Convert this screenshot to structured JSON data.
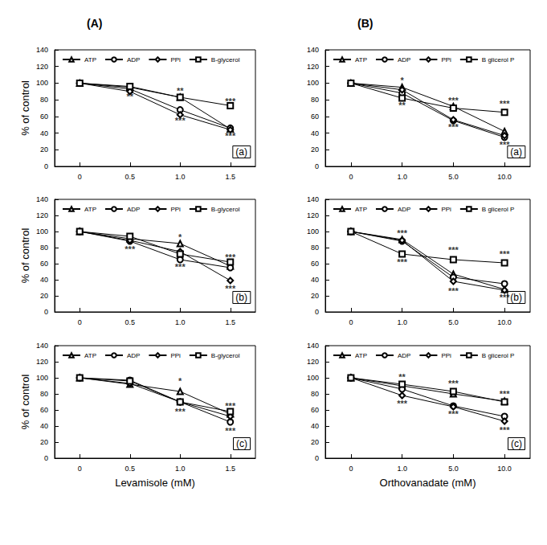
{
  "chart_data": [
    {
      "type": "line",
      "subtitle": "(A)",
      "title": "(a)",
      "ylabel": "% of control",
      "categories": [
        "0",
        "0.5",
        "1.0",
        "1.5"
      ],
      "ylim": [
        0,
        140
      ],
      "yticks": [
        0,
        20,
        40,
        60,
        80,
        100,
        120,
        140
      ],
      "grid": false,
      "legend": "top",
      "series": [
        {
          "name": "ATP",
          "color": "#000000",
          "marker": "triangle",
          "values": [
            100,
            95,
            83,
            45
          ]
        },
        {
          "name": "ADP",
          "color": "#000000",
          "marker": "circle",
          "values": [
            100,
            93,
            68,
            46
          ]
        },
        {
          "name": "PPi",
          "color": "#000000",
          "marker": "diamond",
          "values": [
            100,
            90,
            62,
            44
          ]
        },
        {
          "name": "B-glycerol",
          "color": "#000000",
          "marker": "rect",
          "values": [
            100,
            96,
            83,
            73
          ]
        }
      ],
      "annotations": [
        {
          "x": "0.5",
          "y": 84,
          "text": "**"
        },
        {
          "x": "1.0",
          "y": 91,
          "text": "**"
        },
        {
          "x": "1.0",
          "y": 55,
          "text": "***"
        },
        {
          "x": "1.5",
          "y": 78,
          "text": "***"
        },
        {
          "x": "1.5",
          "y": 37,
          "text": "***"
        }
      ]
    },
    {
      "type": "line",
      "subtitle": "(B)",
      "title": "(a)",
      "categories": [
        "0",
        "1.0",
        "5.0",
        "10.0"
      ],
      "ylim": [
        0,
        140
      ],
      "yticks": [
        0,
        20,
        40,
        60,
        80,
        100,
        120,
        140
      ],
      "grid": false,
      "legend": "top",
      "series": [
        {
          "name": "ATP",
          "color": "#000000",
          "marker": "triangle",
          "values": [
            100,
            95,
            72,
            42
          ]
        },
        {
          "name": "ADP",
          "color": "#000000",
          "marker": "circle",
          "values": [
            100,
            88,
            55,
            35
          ]
        },
        {
          "name": "PPi",
          "color": "#000000",
          "marker": "diamond",
          "values": [
            100,
            92,
            56,
            37
          ]
        },
        {
          "name": "B glicerol P",
          "color": "#000000",
          "marker": "rect",
          "values": [
            100,
            82,
            70,
            65
          ]
        }
      ],
      "annotations": [
        {
          "x": "1.0",
          "y": 103,
          "text": "*"
        },
        {
          "x": "1.0",
          "y": 73,
          "text": "**"
        },
        {
          "x": "5.0",
          "y": 79,
          "text": "***"
        },
        {
          "x": "5.0",
          "y": 47,
          "text": "***"
        },
        {
          "x": "10.0",
          "y": 75,
          "text": "***"
        },
        {
          "x": "10.0",
          "y": 26,
          "text": "***"
        }
      ]
    },
    {
      "type": "line",
      "title": "(b)",
      "ylabel": "% of control",
      "categories": [
        "0",
        "0.5",
        "1.0",
        "1.5"
      ],
      "ylim": [
        0,
        140
      ],
      "yticks": [
        0,
        20,
        40,
        60,
        80,
        100,
        120,
        140
      ],
      "grid": false,
      "legend": "top",
      "series": [
        {
          "name": "ATP",
          "color": "#000000",
          "marker": "triangle",
          "values": [
            100,
            91,
            85,
            57
          ]
        },
        {
          "name": "ADP",
          "color": "#000000",
          "marker": "circle",
          "values": [
            100,
            88,
            65,
            55
          ]
        },
        {
          "name": "PPi",
          "color": "#000000",
          "marker": "diamond",
          "values": [
            100,
            89,
            75,
            39
          ]
        },
        {
          "name": "B-glycerol",
          "color": "#000000",
          "marker": "rect",
          "values": [
            100,
            94,
            72,
            62
          ]
        }
      ],
      "annotations": [
        {
          "x": "1.0",
          "y": 93,
          "text": "*"
        },
        {
          "x": "0.5",
          "y": 78,
          "text": "***"
        },
        {
          "x": "1.0",
          "y": 56,
          "text": "***"
        },
        {
          "x": "1.5",
          "y": 68,
          "text": "***"
        },
        {
          "x": "1.5",
          "y": 29,
          "text": "***"
        }
      ]
    },
    {
      "type": "line",
      "title": "(b)",
      "categories": [
        "0",
        "1.0",
        "5.0",
        "10.0"
      ],
      "ylim": [
        0,
        140
      ],
      "yticks": [
        0,
        20,
        40,
        60,
        80,
        100,
        120,
        140
      ],
      "grid": false,
      "legend": "top",
      "series": [
        {
          "name": "ATP",
          "color": "#000000",
          "marker": "triangle",
          "values": [
            100,
            90,
            47,
            28
          ]
        },
        {
          "name": "ADP",
          "color": "#000000",
          "marker": "circle",
          "values": [
            100,
            88,
            43,
            35
          ]
        },
        {
          "name": "PPi",
          "color": "#000000",
          "marker": "diamond",
          "values": [
            100,
            89,
            38,
            27
          ]
        },
        {
          "name": "B glicerol P",
          "color": "#000000",
          "marker": "rect",
          "values": [
            100,
            72,
            65,
            61
          ]
        }
      ],
      "annotations": [
        {
          "x": "1.0",
          "y": 98,
          "text": "***"
        },
        {
          "x": "1.0",
          "y": 62,
          "text": "***"
        },
        {
          "x": "5.0",
          "y": 77,
          "text": "***"
        },
        {
          "x": "5.0",
          "y": 26,
          "text": "***"
        },
        {
          "x": "10.0",
          "y": 72,
          "text": "***"
        },
        {
          "x": "10.0",
          "y": 18,
          "text": "***"
        }
      ]
    },
    {
      "type": "line",
      "title": "(c)",
      "ylabel": "% of control",
      "xlabel": "Levamisole (mM)",
      "categories": [
        "0",
        "0.5",
        "1.0",
        "1.5"
      ],
      "ylim": [
        0,
        140
      ],
      "yticks": [
        0,
        20,
        40,
        60,
        80,
        100,
        120,
        140
      ],
      "grid": false,
      "legend": "top",
      "series": [
        {
          "name": "ATP",
          "color": "#000000",
          "marker": "triangle",
          "values": [
            100,
            92,
            83,
            55
          ]
        },
        {
          "name": "ADP",
          "color": "#000000",
          "marker": "circle",
          "values": [
            100,
            97,
            70,
            45
          ]
        },
        {
          "name": "PPi",
          "color": "#000000",
          "marker": "diamond",
          "values": [
            100,
            93,
            70,
            52
          ]
        },
        {
          "name": "B-glycerol",
          "color": "#000000",
          "marker": "rect",
          "values": [
            100,
            96,
            70,
            58
          ]
        }
      ],
      "annotations": [
        {
          "x": "1.0",
          "y": 96,
          "text": "*"
        },
        {
          "x": "1.0",
          "y": 58,
          "text": "***"
        },
        {
          "x": "1.5",
          "y": 65,
          "text": "***"
        },
        {
          "x": "1.5",
          "y": 34,
          "text": "***"
        }
      ]
    },
    {
      "type": "line",
      "title": "(c)",
      "xlabel": "Orthovanadate (mM)",
      "categories": [
        "0",
        "1.0",
        "5.0",
        "10.0"
      ],
      "ylim": [
        0,
        140
      ],
      "yticks": [
        0,
        20,
        40,
        60,
        80,
        100,
        120,
        140
      ],
      "grid": false,
      "legend": "top",
      "series": [
        {
          "name": "ATP",
          "color": "#000000",
          "marker": "triangle",
          "values": [
            100,
            90,
            80,
            71
          ]
        },
        {
          "name": "ADP",
          "color": "#000000",
          "marker": "circle",
          "values": [
            100,
            86,
            65,
            52
          ]
        },
        {
          "name": "PPi",
          "color": "#000000",
          "marker": "diamond",
          "values": [
            100,
            78,
            64,
            46
          ]
        },
        {
          "name": "B glicerol P",
          "color": "#000000",
          "marker": "rect",
          "values": [
            100,
            92,
            83,
            70
          ]
        }
      ],
      "annotations": [
        {
          "x": "1.0",
          "y": 101,
          "text": "**"
        },
        {
          "x": "1.0",
          "y": 68,
          "text": "***"
        },
        {
          "x": "5.0",
          "y": 93,
          "text": "***"
        },
        {
          "x": "5.0",
          "y": 55,
          "text": "***"
        },
        {
          "x": "10.0",
          "y": 80,
          "text": "***"
        },
        {
          "x": "10.0",
          "y": 35,
          "text": "***"
        }
      ]
    }
  ]
}
